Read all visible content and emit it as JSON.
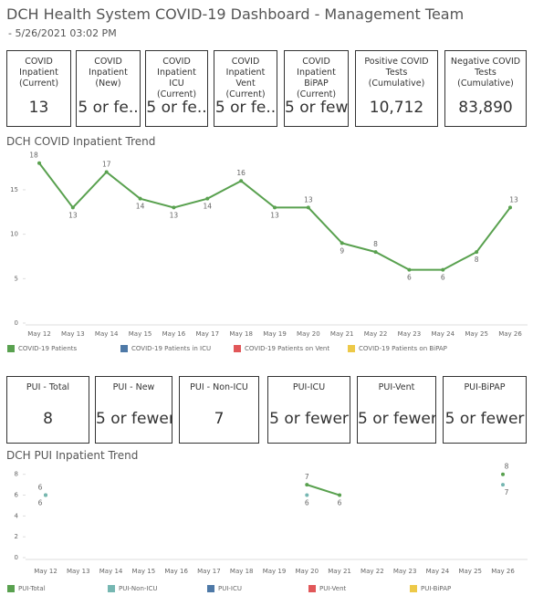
{
  "header": {
    "title": "DCH Health System COVID-19 Dashboard - Management Team",
    "subtitle": "- 5/26/2021 03:02 PM"
  },
  "kpis_top": [
    {
      "label": "COVID Inpatient (Current)",
      "value": "13"
    },
    {
      "label": "COVID Inpatient (New)",
      "value": "5 or fe.."
    },
    {
      "label": "COVID Inpatient ICU (Current)",
      "value": "5 or fe.."
    },
    {
      "label": "COVID Inpatient Vent (Current)",
      "value": "5 or fe.."
    },
    {
      "label": "COVID Inpatient BiPAP (Current)",
      "value": "5 or few.."
    },
    {
      "label": "Positive COVID Tests (Cumulative)",
      "value": "10,712"
    },
    {
      "label": "Negative COVID Tests (Cumulative)",
      "value": "83,890"
    }
  ],
  "kpis_bottom": [
    {
      "label": "PUI - Total",
      "value": "8"
    },
    {
      "label": "PUI - New",
      "value": "5 or fewer"
    },
    {
      "label": "PUI - Non-ICU",
      "value": "7"
    },
    {
      "label": "PUI-ICU",
      "value": "5 or fewer"
    },
    {
      "label": "PUI-Vent",
      "value": "5 or fewer"
    },
    {
      "label": "PUI-BiPAP",
      "value": "5 or fewer"
    }
  ],
  "chart_data": [
    {
      "type": "line",
      "title": "DCH COVID Inpatient Trend",
      "categories": [
        "May 12",
        "May 13",
        "May 14",
        "May 15",
        "May 16",
        "May 17",
        "May 18",
        "May 19",
        "May 20",
        "May 21",
        "May 22",
        "May 23",
        "May 24",
        "May 25",
        "May 26"
      ],
      "series": [
        {
          "name": "COVID-19 Patients",
          "color": "#59a14f",
          "values": [
            18,
            13,
            17,
            14,
            13,
            14,
            16,
            13,
            13,
            9,
            8,
            6,
            6,
            8,
            13
          ]
        },
        {
          "name": "COVID-19 Patients in ICU",
          "color": "#4e79a7",
          "values": [
            null,
            null,
            null,
            null,
            null,
            null,
            null,
            null,
            null,
            null,
            null,
            null,
            null,
            null,
            null
          ]
        },
        {
          "name": "COVID-19 Patients on Vent",
          "color": "#e15759",
          "values": [
            null,
            null,
            null,
            null,
            null,
            null,
            null,
            null,
            null,
            null,
            null,
            null,
            null,
            null,
            null
          ]
        },
        {
          "name": "COVID-19 Patients on BiPAP",
          "color": "#edc948",
          "values": [
            null,
            null,
            null,
            null,
            null,
            null,
            null,
            null,
            null,
            null,
            null,
            null,
            null,
            null,
            null
          ]
        }
      ],
      "ylim": [
        0,
        19
      ],
      "yticks": [
        0,
        5,
        10,
        15
      ],
      "legend": "bottom"
    },
    {
      "type": "line",
      "title": "DCH PUI Inpatient Trend",
      "categories": [
        "May 12",
        "May 13",
        "May 14",
        "May 15",
        "May 16",
        "May 17",
        "May 18",
        "May 19",
        "May 20",
        "May 21",
        "May 22",
        "May 23",
        "May 24",
        "May 25",
        "May 26"
      ],
      "series": [
        {
          "name": "PUI-Total",
          "color": "#59a14f",
          "values": [
            6,
            null,
            null,
            null,
            null,
            null,
            null,
            null,
            7,
            6,
            null,
            null,
            null,
            null,
            8
          ]
        },
        {
          "name": "PUI-Non-ICU",
          "color": "#76b7b2",
          "values": [
            6,
            null,
            null,
            null,
            null,
            null,
            null,
            null,
            6,
            null,
            null,
            null,
            null,
            null,
            7
          ]
        },
        {
          "name": "PUI-ICU",
          "color": "#4e79a7",
          "values": [
            null,
            null,
            null,
            null,
            null,
            null,
            null,
            null,
            null,
            null,
            null,
            null,
            null,
            null,
            null
          ]
        },
        {
          "name": "PUI-Vent",
          "color": "#e15759",
          "values": [
            null,
            null,
            null,
            null,
            null,
            null,
            null,
            null,
            null,
            null,
            null,
            null,
            null,
            null,
            null
          ]
        },
        {
          "name": "PUI-BiPAP",
          "color": "#edc948",
          "values": [
            null,
            null,
            null,
            null,
            null,
            null,
            null,
            null,
            null,
            null,
            null,
            null,
            null,
            null,
            null
          ]
        }
      ],
      "ylim": [
        0,
        8.5
      ],
      "yticks": [
        0,
        2,
        4,
        6,
        8
      ],
      "legend": "bottom"
    }
  ]
}
